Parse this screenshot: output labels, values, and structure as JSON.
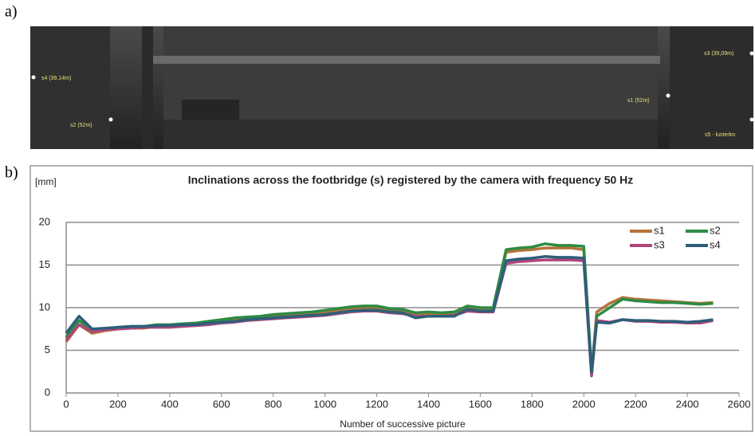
{
  "panel_a_label": "a)",
  "panel_b_label": "b)",
  "photo": {
    "labels": [
      "s4 (39,14m)",
      "s2 (52m)",
      "s1 (52m)",
      "s3 (39,09m)",
      "s5 - lusterko"
    ]
  },
  "chart_data": {
    "type": "line",
    "title": "Inclinations across the footbridge (s) registered by the camera with frequency 50 Hz",
    "y_label": "[mm]",
    "x_label": "Number of  successive picture",
    "x": [
      0,
      50,
      100,
      150,
      200,
      250,
      300,
      350,
      400,
      450,
      500,
      550,
      600,
      650,
      700,
      750,
      800,
      850,
      900,
      950,
      1000,
      1050,
      1100,
      1150,
      1200,
      1250,
      1300,
      1350,
      1400,
      1450,
      1500,
      1550,
      1600,
      1650,
      1700,
      1750,
      1800,
      1850,
      1900,
      1950,
      2000,
      2030,
      2050,
      2100,
      2150,
      2200,
      2250,
      2300,
      2350,
      2400,
      2450,
      2500
    ],
    "series": [
      {
        "name": "s1",
        "color": "#b5733a",
        "values": [
          6,
          8,
          7,
          7.3,
          7.5,
          7.6,
          7.6,
          7.8,
          7.8,
          7.9,
          8,
          8.2,
          8.4,
          8.6,
          8.7,
          8.8,
          8.9,
          9.1,
          9.2,
          9.3,
          9.5,
          9.7,
          9.9,
          10,
          10,
          9.7,
          9.6,
          9.2,
          9.3,
          9.2,
          9.3,
          10,
          9.8,
          9.8,
          16.5,
          16.7,
          16.8,
          17,
          17,
          17,
          16.8,
          2.2,
          9.5,
          10.5,
          11.2,
          11,
          10.9,
          10.8,
          10.7,
          10.6,
          10.5,
          10.6
        ]
      },
      {
        "name": "s2",
        "color": "#2e8b43",
        "values": [
          6.5,
          8.5,
          7.3,
          7.5,
          7.7,
          7.8,
          7.8,
          8,
          8,
          8.1,
          8.2,
          8.4,
          8.6,
          8.8,
          8.9,
          9,
          9.2,
          9.3,
          9.4,
          9.5,
          9.7,
          9.9,
          10.1,
          10.2,
          10.2,
          9.9,
          9.8,
          9.4,
          9.5,
          9.4,
          9.5,
          10.2,
          10,
          10,
          16.8,
          17,
          17.1,
          17.5,
          17.3,
          17.3,
          17.2,
          2.5,
          9,
          10,
          11,
          10.8,
          10.7,
          10.6,
          10.6,
          10.5,
          10.4,
          10.5
        ]
      },
      {
        "name": "s3",
        "color": "#b0467a",
        "values": [
          6.2,
          8,
          7.2,
          7.4,
          7.5,
          7.6,
          7.7,
          7.7,
          7.7,
          7.8,
          7.9,
          8,
          8.2,
          8.3,
          8.5,
          8.6,
          8.7,
          8.8,
          8.9,
          9,
          9.1,
          9.3,
          9.5,
          9.6,
          9.6,
          9.4,
          9.3,
          9,
          9,
          9,
          9.1,
          9.6,
          9.5,
          9.5,
          15.2,
          15.4,
          15.5,
          15.6,
          15.6,
          15.6,
          15.5,
          2,
          8.5,
          8.3,
          8.6,
          8.4,
          8.4,
          8.3,
          8.3,
          8.2,
          8.2,
          8.5
        ]
      },
      {
        "name": "s4",
        "color": "#2d5f7a",
        "values": [
          7,
          9,
          7.5,
          7.6,
          7.7,
          7.8,
          7.8,
          7.9,
          7.9,
          8,
          8,
          8.2,
          8.3,
          8.4,
          8.6,
          8.7,
          8.8,
          8.9,
          9,
          9.1,
          9.2,
          9.4,
          9.6,
          9.7,
          9.7,
          9.5,
          9.4,
          8.8,
          9,
          9,
          9,
          9.8,
          9.6,
          9.6,
          15.5,
          15.7,
          15.8,
          16,
          15.9,
          15.9,
          15.8,
          2.4,
          8.3,
          8.2,
          8.6,
          8.5,
          8.5,
          8.4,
          8.4,
          8.3,
          8.4,
          8.6
        ]
      }
    ],
    "xlim": [
      0,
      2600
    ],
    "xticks": [
      0,
      200,
      400,
      600,
      800,
      1000,
      1200,
      1400,
      1600,
      1800,
      2000,
      2200,
      2400,
      2600
    ],
    "ylim": [
      0,
      20
    ],
    "yticks": [
      0,
      5,
      10,
      15,
      20
    ],
    "grid": true
  }
}
